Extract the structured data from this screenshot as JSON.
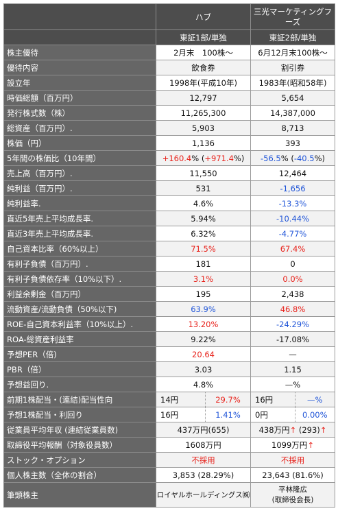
{
  "header": {
    "company_a": "ハブ",
    "company_b": "三光マーケティングフーズ",
    "market_a": "東証1部/単独",
    "market_b": "東証2部/単独"
  },
  "rows": [
    {
      "label": "株主優待",
      "a": "2月末　100株〜",
      "b": "6月12月末100株〜"
    },
    {
      "label": "優待内容",
      "a": "飲食券",
      "b": "割引券"
    },
    {
      "label": "設立年",
      "a": "1998年(平成10年)",
      "b": "1983年(昭和58年)"
    },
    {
      "label": "時価総額（百万円）",
      "a": "12,797",
      "b": "5,654"
    },
    {
      "label": "発行株式数（株）",
      "a": "11,265,300",
      "b": "14,387,000"
    },
    {
      "label": "総資産（百万円）.",
      "a": "5,903",
      "b": "8,713"
    },
    {
      "label": "株価（円）",
      "a": "1,136",
      "b": "393"
    },
    {
      "label": "5年間の株価比（10年間）",
      "a1": "+160.4",
      "a2": "% (",
      "a3": "+971.4",
      "a4": "%)",
      "b1": "-56.5",
      "b2": "% (",
      "b3": "-40.5",
      "b4": "%)"
    },
    {
      "label": "売上高（百万円）.",
      "a": "11,550",
      "b": "12,464"
    },
    {
      "label": "純利益（百万円）.",
      "a": "531",
      "b": "-1,656"
    },
    {
      "label": "純利益率.",
      "a": "4.6%",
      "b": "-13.3%"
    },
    {
      "label": "直近5年売上平均成長率.",
      "a": "5.94%",
      "b": "-10.44%"
    },
    {
      "label": "直近3年売上平均成長率.",
      "a": "6.32%",
      "b": "-4.77%"
    },
    {
      "label": "自己資本比率（60%以上）",
      "a": "71.5%",
      "b": "67.4%"
    },
    {
      "label": "有利子負債（百万円）.",
      "a": "181",
      "b": "0"
    },
    {
      "label": "有利子負債依存率（10%以下）.",
      "a": "3.1%",
      "b": "0.0%"
    },
    {
      "label": "利益余剰金（百万円）",
      "a": "195",
      "b": "2,438"
    },
    {
      "label": "流動資産/流動負債（50%以下)",
      "a": "63.9%",
      "b": "46.8%"
    },
    {
      "label": "ROE-自己資本利益率（10%以上）.",
      "a": "13.20%",
      "b": "-24.29%"
    },
    {
      "label": "ROA-総資産利益率",
      "a": "9.22%",
      "b": "-17.08%"
    },
    {
      "label": "予想PER（倍)",
      "a": "20.64",
      "b": "—"
    },
    {
      "label": "PBR（倍）",
      "a": "3.03",
      "b": "1.15"
    },
    {
      "label": "予想益回り.",
      "a": "4.8%",
      "b": "—%"
    },
    {
      "label": "前期1株配当・(連結)配当性向",
      "a_l": "14円",
      "a_r": "29.7%",
      "b_l": "16円",
      "b_r": "—%"
    },
    {
      "label": "予想1株配当・利回り",
      "a_l": "16円",
      "a_r": "1.41%",
      "b_l": "0円",
      "b_r": "0.00%"
    },
    {
      "label": "従業員平均年収 (連結従業員数)",
      "a": "437万円(655)",
      "b1": "438万円",
      "b_arrow1": "↑",
      "b2": " (293)",
      "b_arrow2": "↑"
    },
    {
      "label": "取締役平均報酬（対象役員数）",
      "a": "1608万円",
      "b1": "1099万円",
      "b_arrow1": "↑"
    },
    {
      "label": "ストック・オプション",
      "a": "不採用",
      "b": "不採用"
    },
    {
      "label": "個人株主数（全体の割合）",
      "a": "3,853 (28.29%)",
      "b": "23,643 (81.6%)"
    },
    {
      "label": "筆頭株主",
      "a": "ロイヤルホールディングス㈱",
      "b_line1": "平林隆広",
      "b_line2": "(取締役会長)"
    }
  ],
  "colors": {
    "red": "#e8221b",
    "blue": "#2055d8",
    "label_bg": "#666666",
    "header_bg": "#4d4d4d"
  }
}
